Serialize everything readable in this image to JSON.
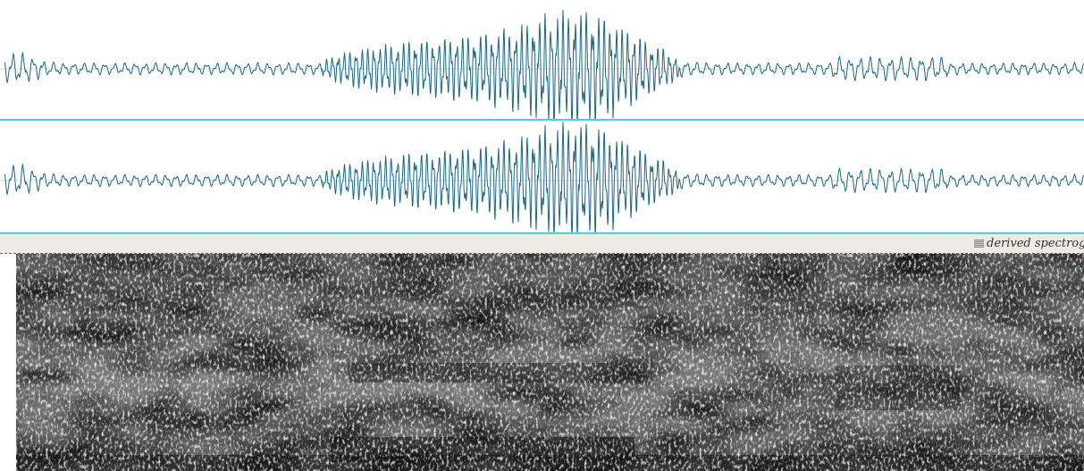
{
  "spectrogram_label": "derived spectrogram"
}
